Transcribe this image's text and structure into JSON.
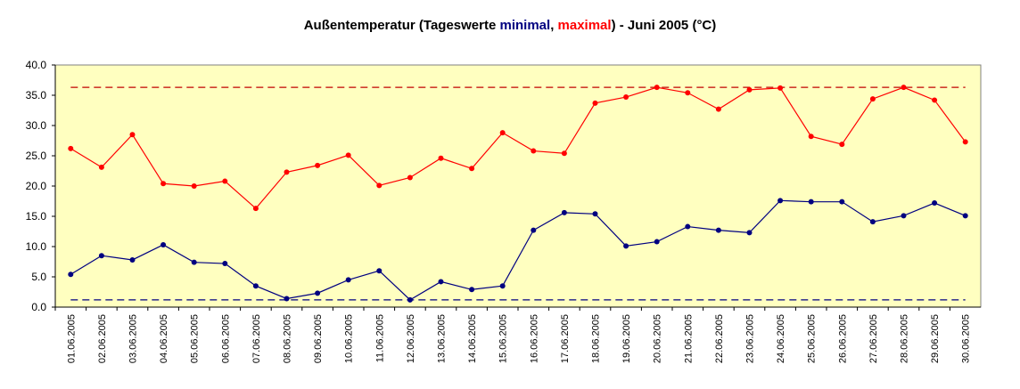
{
  "chart_data": {
    "type": "line",
    "title_parts": [
      "Außentemperatur (Tageswerte ",
      ", ",
      ") - Juni 2005 (°C)"
    ],
    "categories": [
      "01.06.2005",
      "02.06.2005",
      "03.06.2005",
      "04.06.2005",
      "05.06.2005",
      "06.06.2005",
      "07.06.2005",
      "08.06.2005",
      "09.06.2005",
      "10.06.2005",
      "11.06.2005",
      "12.06.2005",
      "13.06.2005",
      "14.06.2005",
      "15.06.2005",
      "16.06.2005",
      "17.06.2005",
      "18.06.2005",
      "19.06.2005",
      "20.06.2005",
      "21.06.2005",
      "22.06.2005",
      "23.06.2005",
      "24.06.2005",
      "25.06.2005",
      "26.06.2005",
      "27.06.2005",
      "28.06.2005",
      "29.06.2005",
      "30.06.2005"
    ],
    "series": [
      {
        "name": "minimal",
        "color": "#000080",
        "values": [
          5.4,
          8.5,
          7.8,
          10.3,
          7.4,
          7.2,
          3.5,
          1.4,
          2.3,
          4.5,
          6.0,
          1.2,
          4.2,
          2.9,
          3.5,
          12.7,
          15.6,
          15.4,
          10.1,
          10.8,
          13.3,
          12.7,
          12.3,
          17.6,
          17.4,
          17.4,
          14.1,
          15.1,
          17.2,
          15.1
        ]
      },
      {
        "name": "maximal",
        "color": "#ff0000",
        "values": [
          26.2,
          23.1,
          28.5,
          20.4,
          20.0,
          20.8,
          16.3,
          22.3,
          23.4,
          25.1,
          20.1,
          21.4,
          24.6,
          22.9,
          28.8,
          25.8,
          25.4,
          33.7,
          34.7,
          36.3,
          35.4,
          32.7,
          35.9,
          36.2,
          28.2,
          26.9,
          34.4,
          36.3,
          34.2,
          27.3
        ]
      }
    ],
    "reference_lines": [
      {
        "value": 36.3,
        "color": "#c00000"
      },
      {
        "value": 1.2,
        "color": "#000080"
      }
    ],
    "ylim": [
      0,
      40
    ],
    "yticks": [
      {
        "value": 0,
        "label": "0.0"
      },
      {
        "value": 5,
        "label": "5.0"
      },
      {
        "value": 10,
        "label": "10.0"
      },
      {
        "value": 15,
        "label": "15.0"
      },
      {
        "value": 20,
        "label": "20.0"
      },
      {
        "value": 25,
        "label": "25.0"
      },
      {
        "value": 30,
        "label": "30.0"
      },
      {
        "value": 35,
        "label": "35.0"
      },
      {
        "value": 40,
        "label": "40.0"
      }
    ],
    "grid": false,
    "plot_background": "#ffffc0"
  }
}
